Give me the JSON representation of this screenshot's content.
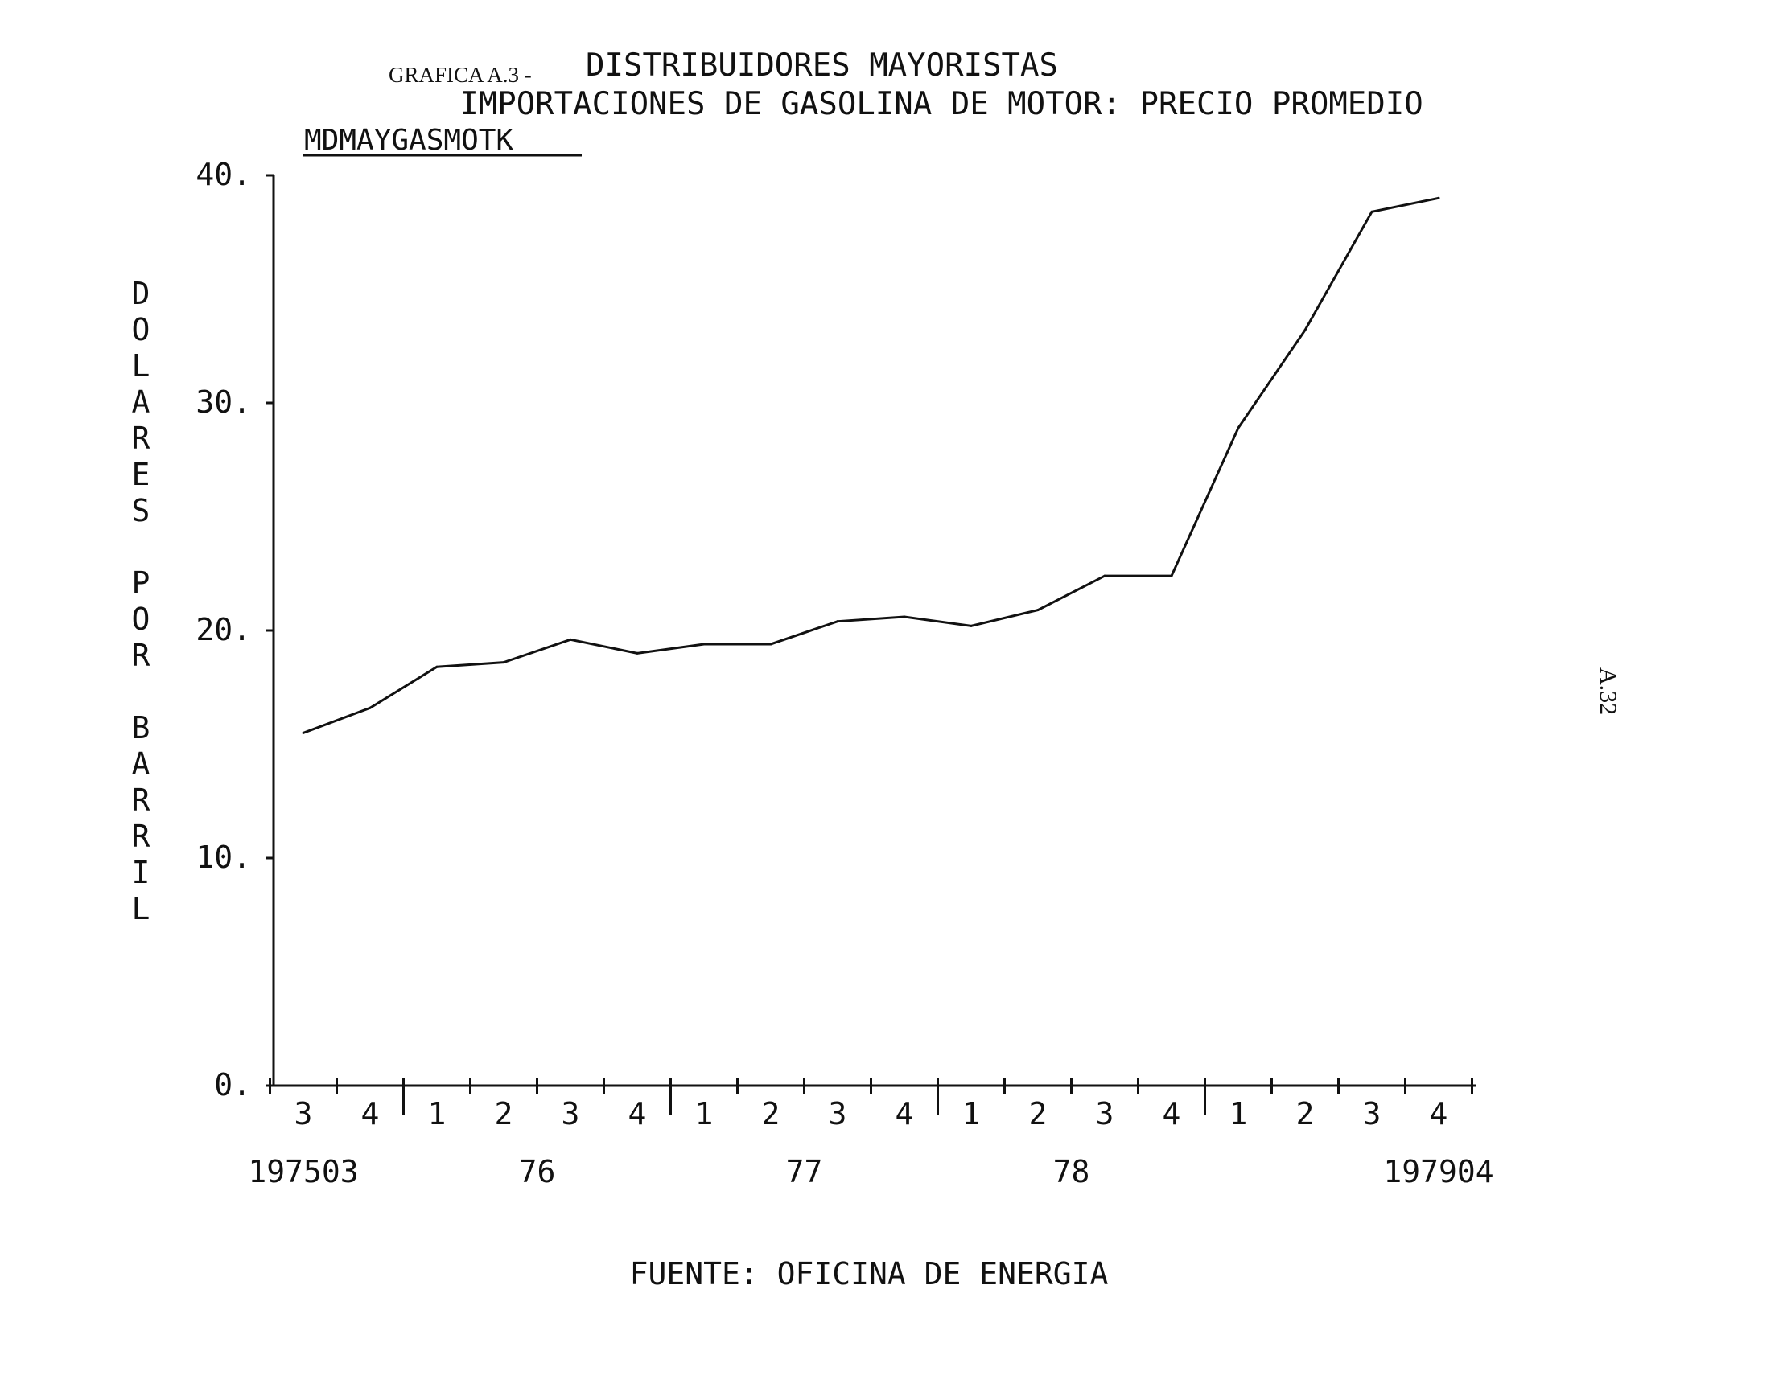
{
  "header": {
    "prefix": "GRAFICA A.3 -",
    "title": "DISTRIBUIDORES MAYORISTAS",
    "subtitle": "IMPORTACIONES DE GASOLINA DE MOTOR: PRECIO PROMEDIO",
    "series_code": "MDMAYGASMOTK"
  },
  "source_note": "FUENTE: OFICINA DE ENERGIA",
  "page_number": "A.32",
  "chart_data": {
    "type": "line",
    "ylabel": "DOLARES POR BARRIL",
    "ylim": [
      0,
      40
    ],
    "y_ticks": [
      "0.",
      "10.",
      "20.",
      "30.",
      "40."
    ],
    "quarter_labels": [
      "3",
      "4",
      "1",
      "2",
      "3",
      "4",
      "1",
      "2",
      "3",
      "4",
      "1",
      "2",
      "3",
      "4",
      "1",
      "2",
      "3",
      "4"
    ],
    "year_labels": [
      {
        "label": "197503",
        "quarter_index": 0
      },
      {
        "label": "76",
        "quarter_index": 3.5
      },
      {
        "label": "77",
        "quarter_index": 7.5
      },
      {
        "label": "78",
        "quarter_index": 11.5
      },
      {
        "label": "197904",
        "quarter_index": 17
      }
    ],
    "x": [
      "1975Q3",
      "1975Q4",
      "1976Q1",
      "1976Q2",
      "1976Q3",
      "1976Q4",
      "1977Q1",
      "1977Q2",
      "1977Q3",
      "1977Q4",
      "1978Q1",
      "1978Q2",
      "1978Q3",
      "1978Q4",
      "1979Q1",
      "1979Q2",
      "1979Q3",
      "1979Q4"
    ],
    "series": [
      {
        "values": [
          15.5,
          16.6,
          18.4,
          18.6,
          19.6,
          19.0,
          19.4,
          19.4,
          20.4,
          20.6,
          20.2,
          20.9,
          22.4,
          22.4,
          28.9,
          33.2,
          38.4,
          39.0
        ]
      }
    ],
    "grid": false,
    "color": "#111111"
  }
}
